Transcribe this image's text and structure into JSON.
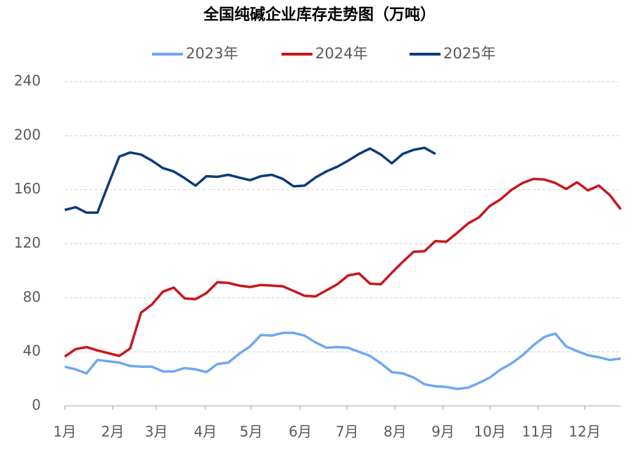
{
  "chart_data": {
    "type": "line",
    "title": "全国纯碱企业库存走势图（万吨）",
    "x": [
      0,
      1,
      2,
      3,
      4,
      5,
      6,
      7,
      8,
      9,
      10,
      11,
      12,
      13,
      14,
      15,
      16,
      17,
      18,
      19,
      20,
      21,
      22,
      23,
      24,
      25,
      26,
      27,
      28,
      29,
      30,
      31,
      32,
      33,
      34,
      35,
      36,
      37,
      38,
      39,
      40,
      41,
      42,
      43,
      44,
      45,
      46,
      47,
      48,
      49,
      50,
      51
    ],
    "xlim": [
      0,
      51
    ],
    "xticks": [
      {
        "value": 0,
        "label": "1月"
      },
      {
        "value": 4.4,
        "label": "2月"
      },
      {
        "value": 8.4,
        "label": "3月"
      },
      {
        "value": 12.9,
        "label": "4月"
      },
      {
        "value": 17.1,
        "label": "5月"
      },
      {
        "value": 21.6,
        "label": "6月"
      },
      {
        "value": 25.9,
        "label": "7月"
      },
      {
        "value": 30.3,
        "label": "8月"
      },
      {
        "value": 34.7,
        "label": "9月"
      },
      {
        "value": 39,
        "label": "10月"
      },
      {
        "value": 43.4,
        "label": "11月"
      },
      {
        "value": 47.7,
        "label": "12月"
      }
    ],
    "ylim": [
      0,
      240
    ],
    "yticks": [
      0,
      40,
      80,
      120,
      160,
      200,
      240
    ],
    "grid": true,
    "legend": "top",
    "series": [
      {
        "name": "2023年",
        "color": "#6fa8f2",
        "values": [
          29,
          27,
          24,
          34,
          33,
          32,
          29.5,
          29,
          29,
          25.5,
          25.5,
          28,
          27,
          25,
          31,
          32,
          38.5,
          44,
          52.5,
          52,
          54,
          54,
          52,
          47,
          43,
          43.5,
          43,
          40,
          37,
          31.5,
          25,
          24,
          21,
          16,
          14.5,
          14,
          12.5,
          13.5,
          17,
          21,
          27,
          31.5,
          37.5,
          45,
          51,
          53.5,
          44,
          40.5,
          37.5,
          36,
          34,
          35
        ]
      },
      {
        "name": "2024年",
        "color": "#c8161d",
        "values": [
          36.5,
          42,
          43.5,
          41,
          39,
          37,
          42.5,
          69,
          75,
          84.5,
          87.5,
          79.5,
          79,
          83.5,
          91.5,
          91,
          89,
          88,
          89.5,
          89,
          88.5,
          85,
          81.5,
          81,
          85.5,
          90,
          96.5,
          98,
          90.5,
          90,
          98.5,
          106.5,
          114,
          114.5,
          122,
          121.5,
          128,
          135,
          139.5,
          148,
          153,
          160,
          165,
          168,
          167.5,
          165,
          160.5,
          165.5,
          159.5,
          163,
          156,
          145.5
        ]
      },
      {
        "name": "2025年",
        "color": "#0d3b7a",
        "values": [
          145,
          147,
          143,
          143,
          164,
          184.5,
          187.5,
          186,
          181.5,
          176,
          173.5,
          168.5,
          163,
          170,
          169.5,
          171,
          169,
          167,
          170,
          171,
          168,
          162.5,
          163,
          169,
          173.5,
          177,
          181.5,
          186.5,
          190.5,
          186,
          179.5,
          186.5,
          189.5,
          191,
          186.5,
          null,
          null,
          null,
          null,
          null,
          null,
          null,
          null,
          null,
          null,
          null,
          null,
          null,
          null,
          null,
          null,
          null
        ]
      }
    ]
  }
}
